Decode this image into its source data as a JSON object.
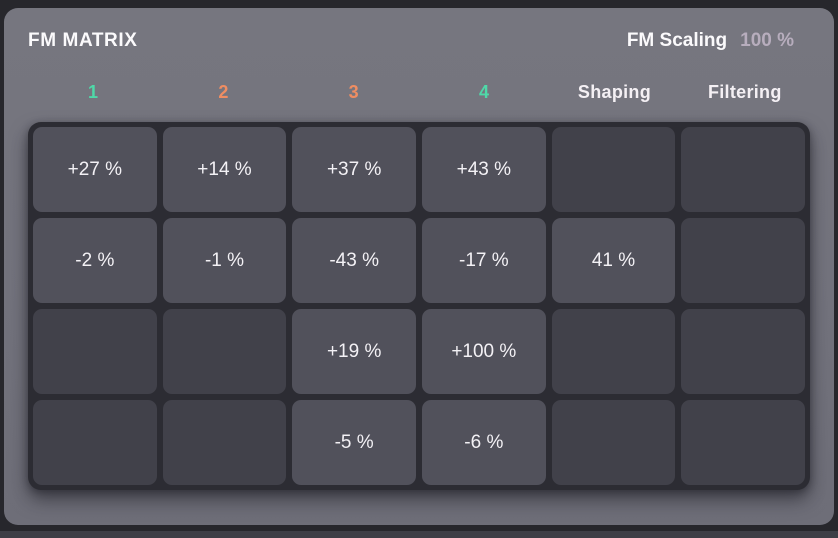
{
  "panel": {
    "title": "FM MATRIX"
  },
  "scaling": {
    "label": "FM Scaling",
    "value": "100 %"
  },
  "columns": [
    {
      "label": "1",
      "color": "#4fd8a8"
    },
    {
      "label": "2",
      "color": "#ef8d62"
    },
    {
      "label": "3",
      "color": "#ef8d62"
    },
    {
      "label": "4",
      "color": "#4fd8a8"
    },
    {
      "label": "Shaping",
      "color": "#f4f0f4"
    },
    {
      "label": "Filtering",
      "color": "#f4f0f4"
    }
  ],
  "matrix": {
    "rows": [
      [
        "+27 %",
        "+14 %",
        "+37 %",
        "+43 %",
        null,
        null
      ],
      [
        "-2 %",
        "-1 %",
        "-43 %",
        "-17 %",
        "41 %",
        null
      ],
      [
        null,
        null,
        "+19 %",
        "+100 %",
        null,
        null
      ],
      [
        null,
        null,
        "-5 %",
        "-6 %",
        null,
        null
      ]
    ]
  },
  "colors": {
    "page_bg": "#27272c",
    "panel_bg": "#73737d",
    "grid_bg": "#2c2c33",
    "cell_filled": "#51515b",
    "cell_empty": "#41414a",
    "cell_text": "#f3f1f5",
    "title_text": "#fbfafc",
    "scaling_value": "#b7adbd",
    "accent_green": "#4fd8a8",
    "accent_orange": "#ef8d62",
    "bottom_strip": "#3e3e46"
  }
}
